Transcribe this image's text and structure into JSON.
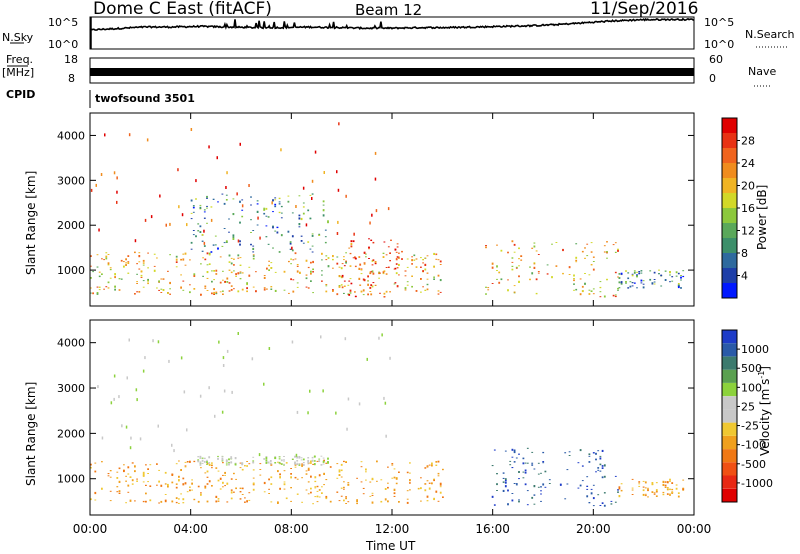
{
  "header": {
    "title": "Dome C East (fitACF)",
    "beam": "Beam 12",
    "date": "11/Sep/2016"
  },
  "status_strip": {
    "left_label": "N.Sky",
    "right_label": "N.Search",
    "right_legend_style": "dotted",
    "left_ticks": [
      "10^5",
      "10^0"
    ],
    "right_ticks": [
      "10^5",
      "10^0"
    ],
    "nsky_level_profile": [
      0.6,
      0.65,
      0.7,
      0.7,
      0.72,
      0.7,
      0.68,
      0.68,
      0.7,
      0.68,
      0.66,
      0.66,
      0.68,
      0.68,
      0.7,
      0.72,
      0.74,
      0.78,
      0.84,
      0.9,
      0.94,
      0.95,
      0.95
    ]
  },
  "freq_strip": {
    "left_label_line1": "Freq.",
    "left_label_line2": "[MHz]",
    "left_ticks": [
      "18",
      "8"
    ],
    "right_ticks": [
      "60",
      "0"
    ],
    "right_label": "Nave",
    "right_legend_style": "dotted"
  },
  "cpid": {
    "label": "CPID",
    "value": "twofsound 3501"
  },
  "chart_data": [
    {
      "type": "heatmap",
      "panel": "power",
      "ylabel": "Slant Range [km]",
      "yticks": [
        1000,
        2000,
        3000,
        4000
      ],
      "ylim": [
        200,
        4500
      ],
      "colorbar": {
        "label": "Power [dB]",
        "ticks": [
          "4",
          "8",
          "12",
          "16",
          "20",
          "24",
          "28"
        ],
        "colors": [
          "#0018ff",
          "#1e3fa8",
          "#2e6a9e",
          "#3c8f6a",
          "#5aa85a",
          "#8cc83c",
          "#d2d828",
          "#f0b424",
          "#f08c1e",
          "#f0641e",
          "#e83214",
          "#e00000"
        ],
        "range": [
          0,
          32
        ]
      },
      "echo_regions": [
        {
          "t_start": 0.0,
          "t_end": 14.0,
          "r_min": 450,
          "r_max": 1400,
          "level": "high"
        },
        {
          "t_start": 10.0,
          "t_end": 12.5,
          "r_min": 400,
          "r_max": 1700,
          "level": "very-high"
        },
        {
          "t_start": 4.0,
          "t_end": 9.5,
          "r_min": 1400,
          "r_max": 2700,
          "level": "low"
        },
        {
          "t_start": 15.7,
          "t_end": 21.0,
          "r_min": 400,
          "r_max": 1650,
          "level": "high"
        },
        {
          "t_start": 21.0,
          "t_end": 23.6,
          "r_min": 600,
          "r_max": 1000,
          "level": "low"
        }
      ]
    },
    {
      "type": "heatmap",
      "panel": "velocity",
      "ylabel": "Slant Range [km]",
      "yticks": [
        1000,
        2000,
        3000,
        4000
      ],
      "ylim": [
        200,
        4500
      ],
      "colorbar": {
        "label": "Velocity [m s^-1]",
        "ticks": [
          "1000",
          "500",
          "100",
          "25",
          "-25",
          "-100",
          "-500",
          "-1000"
        ],
        "colors": [
          "#1e3cc8",
          "#2a5aa8",
          "#3c7a6e",
          "#5aa050",
          "#8cd23c",
          "#c8c8c8",
          "#c8c8c8",
          "#f0c832",
          "#f0a01e",
          "#f07814",
          "#f05014",
          "#e82814",
          "#e00000"
        ]
      },
      "echo_regions": [
        {
          "t_start": 0.0,
          "t_end": 14.0,
          "r_min": 450,
          "r_max": 1400,
          "sign": "negative",
          "value": -100
        },
        {
          "t_start": 4.0,
          "t_end": 9.5,
          "r_min": 1300,
          "r_max": 1500,
          "sign": "near-zero",
          "value": 0
        },
        {
          "t_start": 15.7,
          "t_end": 21.0,
          "r_min": 400,
          "r_max": 1700,
          "sign": "positive",
          "value": 500
        },
        {
          "t_start": 21.0,
          "t_end": 23.6,
          "r_min": 600,
          "r_max": 1000,
          "sign": "negative",
          "value": -100
        }
      ]
    }
  ],
  "x_axis": {
    "label": "Time UT",
    "ticks": [
      "00:00",
      "04:00",
      "08:00",
      "12:00",
      "16:00",
      "20:00",
      "00:00"
    ],
    "range_hours": [
      0,
      24
    ]
  }
}
